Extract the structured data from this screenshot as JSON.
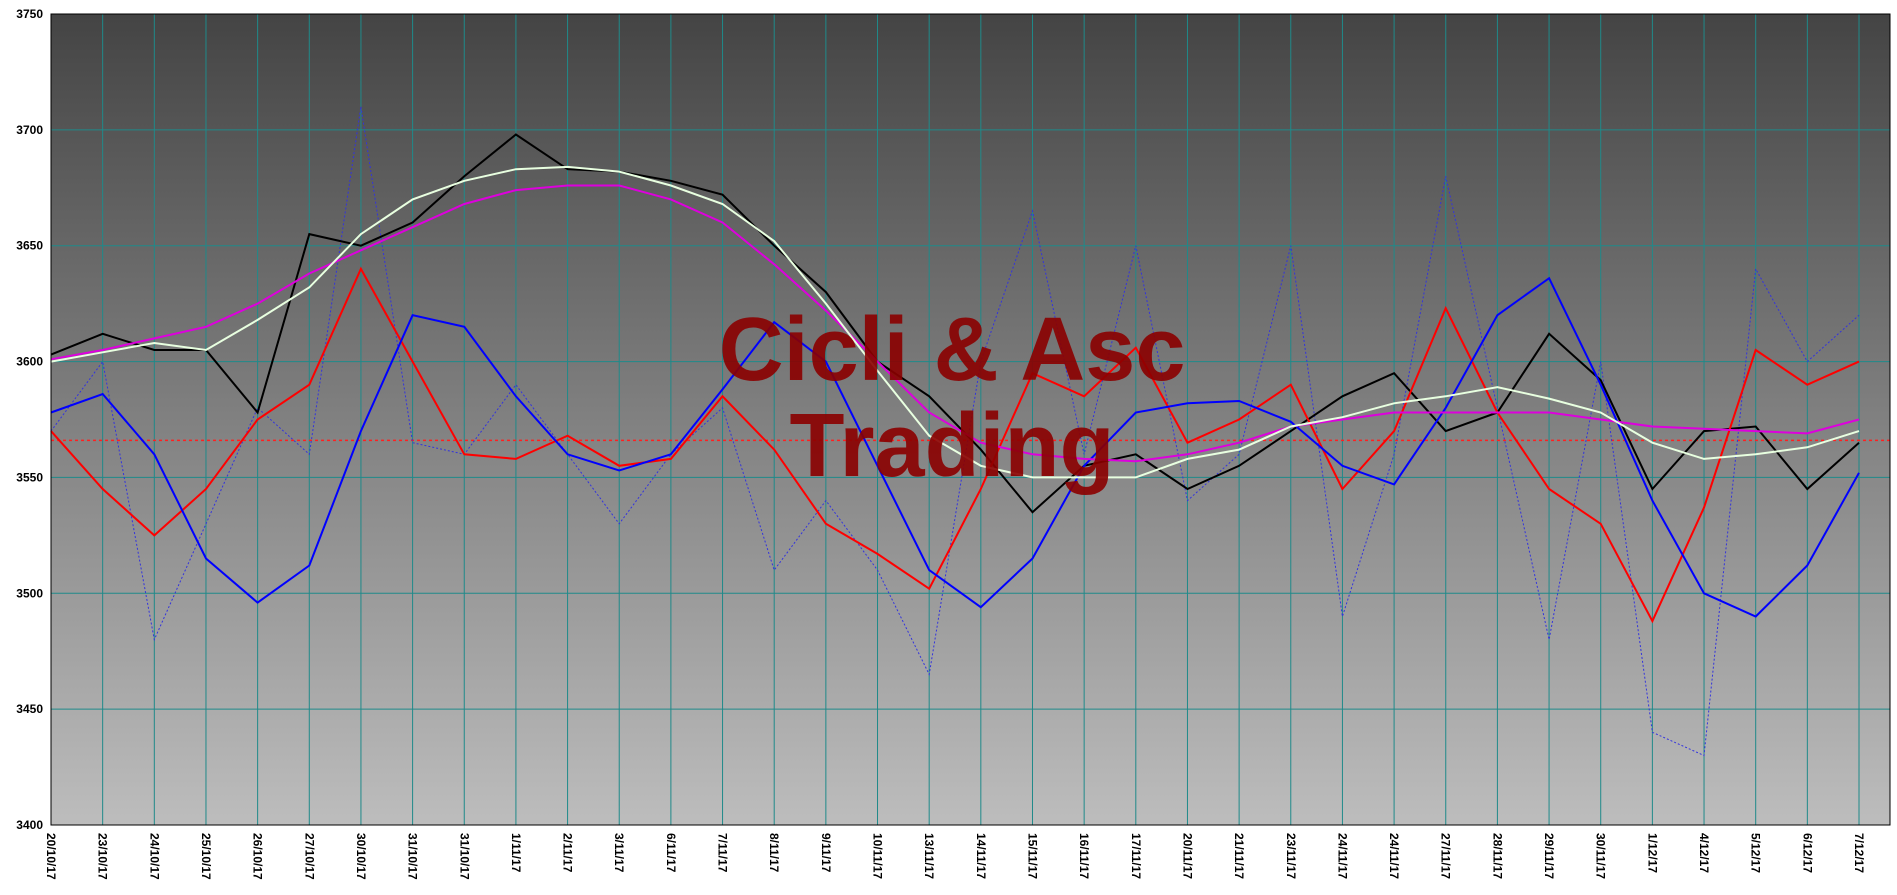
{
  "chart_data": {
    "type": "line",
    "watermark": [
      "Cicli & Asc",
      "Trading"
    ],
    "categories": [
      "20/10/17",
      "23/10/17",
      "24/10/17",
      "25/10/17",
      "26/10/17",
      "27/10/17",
      "30/10/17",
      "31/10/17",
      "31/10/17",
      "1/11/17",
      "2/11/17",
      "3/11/17",
      "6/11/17",
      "7/11/17",
      "8/11/17",
      "9/11/17",
      "10/11/17",
      "13/11/17",
      "14/11/17",
      "15/11/17",
      "16/11/17",
      "17/11/17",
      "20/11/17",
      "21/11/17",
      "23/11/17",
      "24/11/17",
      "24/11/17",
      "27/11/17",
      "28/11/17",
      "29/11/17",
      "30/11/17",
      "1/12/17",
      "4/12/17",
      "5/12/17",
      "6/12/17",
      "7/12/17"
    ],
    "series": [
      {
        "color": "#3333dd",
        "style": "dotted",
        "values": [
          3570,
          3600,
          3480,
          3530,
          3580,
          3560,
          3710,
          3565,
          3560,
          3590,
          3560,
          3530,
          3560,
          3580,
          3510,
          3540,
          3510,
          3465,
          3600,
          3665,
          3560,
          3650,
          3540,
          3560,
          3650,
          3490,
          3560,
          3680,
          3580,
          3480,
          3600,
          3440,
          3430,
          3640,
          3600,
          3620
        ]
      },
      {
        "color": "#000000",
        "style": "solid",
        "values": [
          3603,
          3612,
          3605,
          3605,
          3578,
          3655,
          3650,
          3660,
          3680,
          3698,
          3683,
          3682,
          3678,
          3672,
          3650,
          3630,
          3600,
          3585,
          3562,
          3535,
          3555,
          3560,
          3545,
          3555,
          3570,
          3585,
          3595,
          3570,
          3578,
          3612,
          3592,
          3545,
          3570,
          3572,
          3545,
          3565
        ]
      },
      {
        "color": "#ff0000",
        "style": "solid",
        "values": [
          3570,
          3545,
          3525,
          3545,
          3575,
          3590,
          3640,
          3600,
          3560,
          3558,
          3568,
          3555,
          3558,
          3585,
          3562,
          3530,
          3517,
          3502,
          3545,
          3595,
          3585,
          3606,
          3565,
          3575,
          3590,
          3545,
          3570,
          3623,
          3578,
          3545,
          3530,
          3488,
          3537,
          3605,
          3590,
          3600
        ]
      },
      {
        "color": "#0000ff",
        "style": "solid",
        "values": [
          3578,
          3586,
          3560,
          3515,
          3496,
          3512,
          3570,
          3620,
          3615,
          3585,
          3560,
          3553,
          3560,
          3588,
          3617,
          3600,
          3555,
          3510,
          3494,
          3515,
          3555,
          3578,
          3582,
          3583,
          3574,
          3555,
          3547,
          3580,
          3620,
          3636,
          3590,
          3540,
          3500,
          3490,
          3512,
          3552
        ]
      },
      {
        "color": "#dd00dd",
        "style": "solid",
        "values": [
          3601,
          3605,
          3610,
          3615,
          3625,
          3638,
          3648,
          3658,
          3668,
          3674,
          3676,
          3676,
          3670,
          3660,
          3642,
          3622,
          3600,
          3578,
          3565,
          3560,
          3558,
          3557,
          3560,
          3565,
          3572,
          3575,
          3578,
          3578,
          3578,
          3578,
          3575,
          3572,
          3571,
          3570,
          3569,
          3575
        ]
      },
      {
        "color": "#e8ffe0",
        "style": "solid",
        "values": [
          3600,
          3604,
          3608,
          3605,
          3618,
          3632,
          3655,
          3670,
          3678,
          3683,
          3684,
          3682,
          3676,
          3668,
          3652,
          3625,
          3596,
          3568,
          3555,
          3550,
          3550,
          3550,
          3558,
          3562,
          3572,
          3576,
          3582,
          3585,
          3589,
          3584,
          3578,
          3565,
          3558,
          3560,
          3563,
          3570
        ]
      }
    ],
    "hline": {
      "value": 3566,
      "color": "#ff2020"
    },
    "ylim": [
      3400,
      3750
    ],
    "yticks": [
      3400,
      3450,
      3500,
      3550,
      3600,
      3650,
      3700,
      3750
    ],
    "grid": true,
    "grid_color": "#1f8a8a"
  }
}
